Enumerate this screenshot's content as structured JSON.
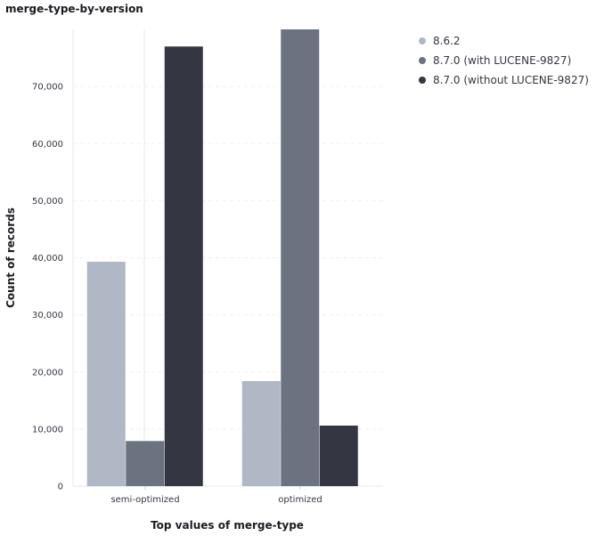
{
  "title": "merge-type-by-version",
  "chart_data": {
    "type": "bar",
    "title": "merge-type-by-version",
    "xlabel": "Top values of merge-type",
    "ylabel": "Count of records",
    "categories": [
      "semi-optimized",
      "optimized"
    ],
    "series": [
      {
        "name": "8.6.2",
        "color": "#b0b8c6",
        "values": [
          39300,
          18400
        ]
      },
      {
        "name": "8.7.0 (with LUCENE-9827)",
        "color": "#6c7380",
        "values": [
          7900,
          80000
        ]
      },
      {
        "name": "8.7.0 (without LUCENE-9827)",
        "color": "#343741",
        "values": [
          77000,
          10600
        ]
      }
    ],
    "yticks": [
      0,
      10000,
      20000,
      30000,
      40000,
      50000,
      60000,
      70000
    ],
    "ytick_labels": [
      "0",
      "10,000",
      "20,000",
      "30,000",
      "40,000",
      "50,000",
      "60,000",
      "70,000"
    ],
    "ylim": [
      0,
      80000
    ],
    "grid": true,
    "legend": "top-right"
  }
}
